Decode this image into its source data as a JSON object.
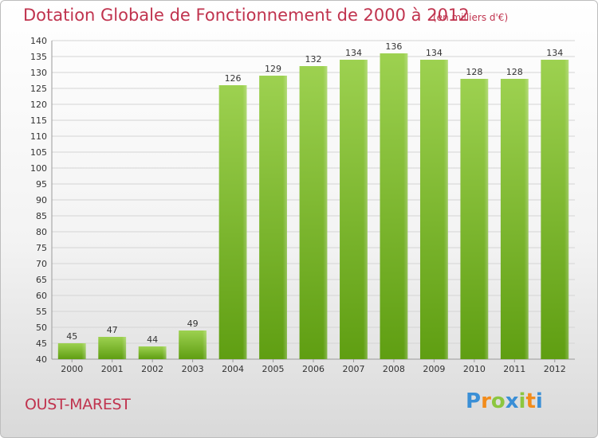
{
  "header": {
    "title": "Dotation Globale de Fonctionnement de 2000 à 2012",
    "subtitle": "(en milliers d'€)"
  },
  "footer": {
    "town": "OUST-MAREST",
    "logo_letters": [
      {
        "char": "P",
        "color": "#3a8fd6"
      },
      {
        "char": "r",
        "color": "#f28c1b"
      },
      {
        "char": "o",
        "color": "#8cc63f"
      },
      {
        "char": "x",
        "color": "#3a8fd6"
      },
      {
        "char": "i",
        "color": "#8cc63f"
      },
      {
        "char": "t",
        "color": "#f28c1b"
      },
      {
        "char": "i",
        "color": "#3a8fd6"
      }
    ]
  },
  "chart_data": {
    "type": "bar",
    "title": "Dotation Globale de Fonctionnement de 2000 à 2012",
    "subtitle": "(en milliers d'€)",
    "categories": [
      "2000",
      "2001",
      "2002",
      "2003",
      "2004",
      "2005",
      "2006",
      "2007",
      "2008",
      "2009",
      "2010",
      "2011",
      "2012"
    ],
    "values": [
      45,
      47,
      44,
      49,
      126,
      129,
      132,
      134,
      136,
      134,
      128,
      128,
      134
    ],
    "ylim": [
      40,
      140
    ],
    "ytick_step": 5,
    "grid": true,
    "legend": "none",
    "bar_color_top": "#9dd150",
    "bar_color_bottom": "#5f9e12",
    "grid_color": "#d4d4d4"
  }
}
